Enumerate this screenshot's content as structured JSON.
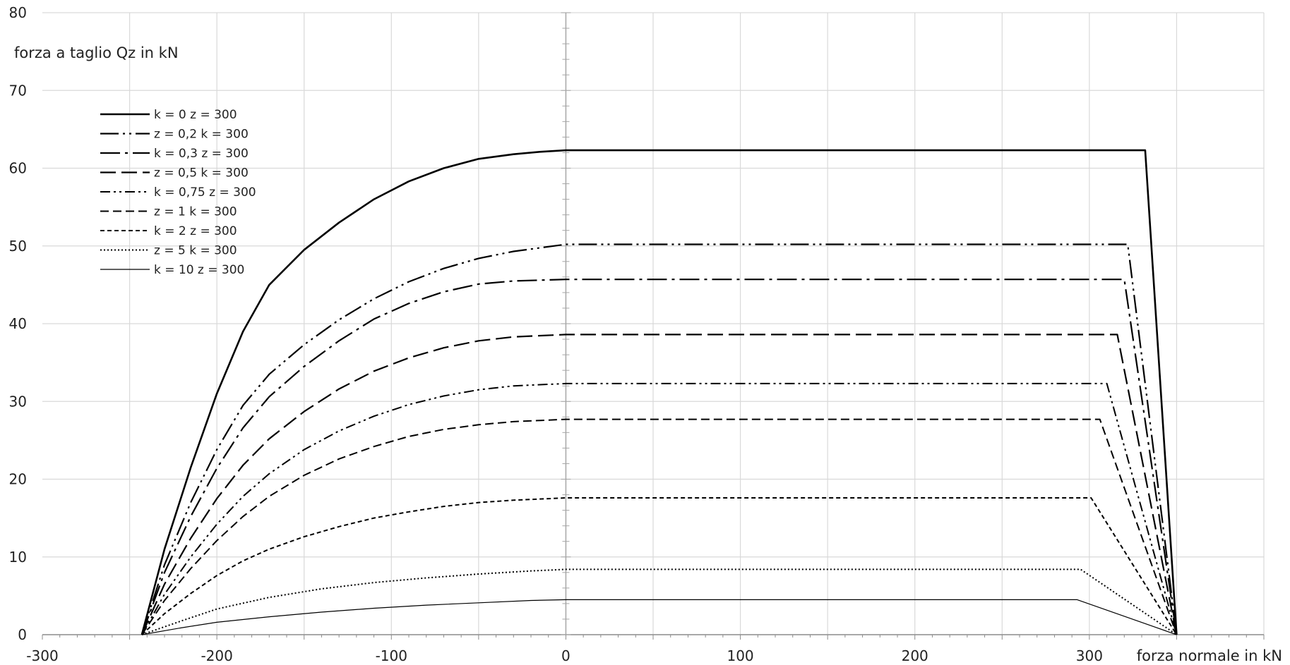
{
  "chart_data": {
    "type": "line",
    "xlabel": "forza normale in kN",
    "ylabel": "forza a taglio Qz in kN",
    "xlim": [
      -300,
      400
    ],
    "ylim": [
      0,
      80
    ],
    "xticks": [
      -300,
      -200,
      -100,
      0,
      100,
      200,
      300
    ],
    "yticks": [
      0,
      10,
      20,
      30,
      40,
      50,
      60,
      70,
      80
    ],
    "grid": true,
    "legend_position": "top-left",
    "series": [
      {
        "name": "k = 0 z = 300",
        "style": "solid-thick",
        "x": [
          -243,
          -230,
          -215,
          -200,
          -185,
          -170,
          -150,
          -130,
          -110,
          -90,
          -70,
          -50,
          -30,
          -15,
          0,
          332,
          350
        ],
        "y": [
          0,
          11,
          21.5,
          31,
          39,
          45,
          49.5,
          53,
          56,
          58.3,
          60,
          61.2,
          61.8,
          62.1,
          62.3,
          62.3,
          0
        ]
      },
      {
        "name": "z = 0,2 k = 300",
        "style": "dash-dot-dot-long",
        "x": [
          -243,
          -230,
          -215,
          -200,
          -185,
          -170,
          -150,
          -130,
          -110,
          -90,
          -70,
          -50,
          -30,
          0,
          322,
          350
        ],
        "y": [
          0,
          9,
          17,
          23.8,
          29.5,
          33.5,
          37.3,
          40.5,
          43.2,
          45.4,
          47.1,
          48.4,
          49.3,
          50.2,
          50.2,
          0
        ]
      },
      {
        "name": "k = 0,3 z = 300",
        "style": "dash-dot-long",
        "x": [
          -243,
          -230,
          -215,
          -200,
          -185,
          -170,
          -150,
          -130,
          -110,
          -90,
          -70,
          -50,
          -30,
          0,
          320,
          350
        ],
        "y": [
          0,
          8,
          15.2,
          21.4,
          26.6,
          30.6,
          34.5,
          37.8,
          40.6,
          42.6,
          44.1,
          45.1,
          45.5,
          45.7,
          45.7,
          0
        ]
      },
      {
        "name": "z = 0,5 k = 300",
        "style": "dash-long",
        "x": [
          -243,
          -230,
          -215,
          -200,
          -185,
          -170,
          -150,
          -130,
          -110,
          -90,
          -70,
          -50,
          -30,
          0,
          316,
          350
        ],
        "y": [
          0,
          6.5,
          12.4,
          17.5,
          21.8,
          25.2,
          28.7,
          31.6,
          33.9,
          35.6,
          36.9,
          37.8,
          38.3,
          38.6,
          38.6,
          0
        ]
      },
      {
        "name": "k = 0,75 z = 300",
        "style": "dash-dot-dot-short",
        "x": [
          -243,
          -230,
          -215,
          -200,
          -185,
          -170,
          -150,
          -130,
          -110,
          -90,
          -70,
          -50,
          -30,
          0,
          310,
          350
        ],
        "y": [
          0,
          5.2,
          10,
          14.2,
          17.8,
          20.7,
          23.8,
          26.2,
          28.1,
          29.6,
          30.7,
          31.5,
          32,
          32.3,
          32.3,
          0
        ]
      },
      {
        "name": "z = 1 k = 300",
        "style": "dash-medium",
        "x": [
          -243,
          -230,
          -215,
          -200,
          -185,
          -170,
          -150,
          -130,
          -110,
          -90,
          -70,
          -50,
          -30,
          0,
          306,
          350
        ],
        "y": [
          0,
          4.4,
          8.5,
          12.1,
          15.2,
          17.8,
          20.5,
          22.6,
          24.2,
          25.5,
          26.4,
          27,
          27.4,
          27.7,
          27.7,
          0
        ]
      },
      {
        "name": "k = 2 z = 300",
        "style": "dash-short",
        "x": [
          -243,
          -230,
          -215,
          -200,
          -185,
          -170,
          -150,
          -130,
          -110,
          -90,
          -70,
          -50,
          -30,
          0,
          301,
          350
        ],
        "y": [
          0,
          2.7,
          5.3,
          7.6,
          9.5,
          11,
          12.6,
          13.9,
          15,
          15.8,
          16.5,
          17,
          17.3,
          17.6,
          17.6,
          0
        ]
      },
      {
        "name": "z = 5 k = 300",
        "style": "dotted",
        "x": [
          -243,
          -220,
          -200,
          -170,
          -140,
          -110,
          -80,
          -50,
          -20,
          0,
          295,
          350
        ],
        "y": [
          0,
          1.8,
          3.3,
          4.8,
          5.9,
          6.7,
          7.3,
          7.8,
          8.2,
          8.4,
          8.4,
          0
        ]
      },
      {
        "name": "k = 10 z = 300",
        "style": "solid-thin",
        "x": [
          -243,
          -220,
          -200,
          -170,
          -140,
          -110,
          -80,
          -50,
          -20,
          0,
          293,
          350
        ],
        "y": [
          0,
          0.9,
          1.6,
          2.3,
          2.9,
          3.4,
          3.8,
          4.1,
          4.4,
          4.5,
          4.5,
          0
        ]
      }
    ]
  }
}
